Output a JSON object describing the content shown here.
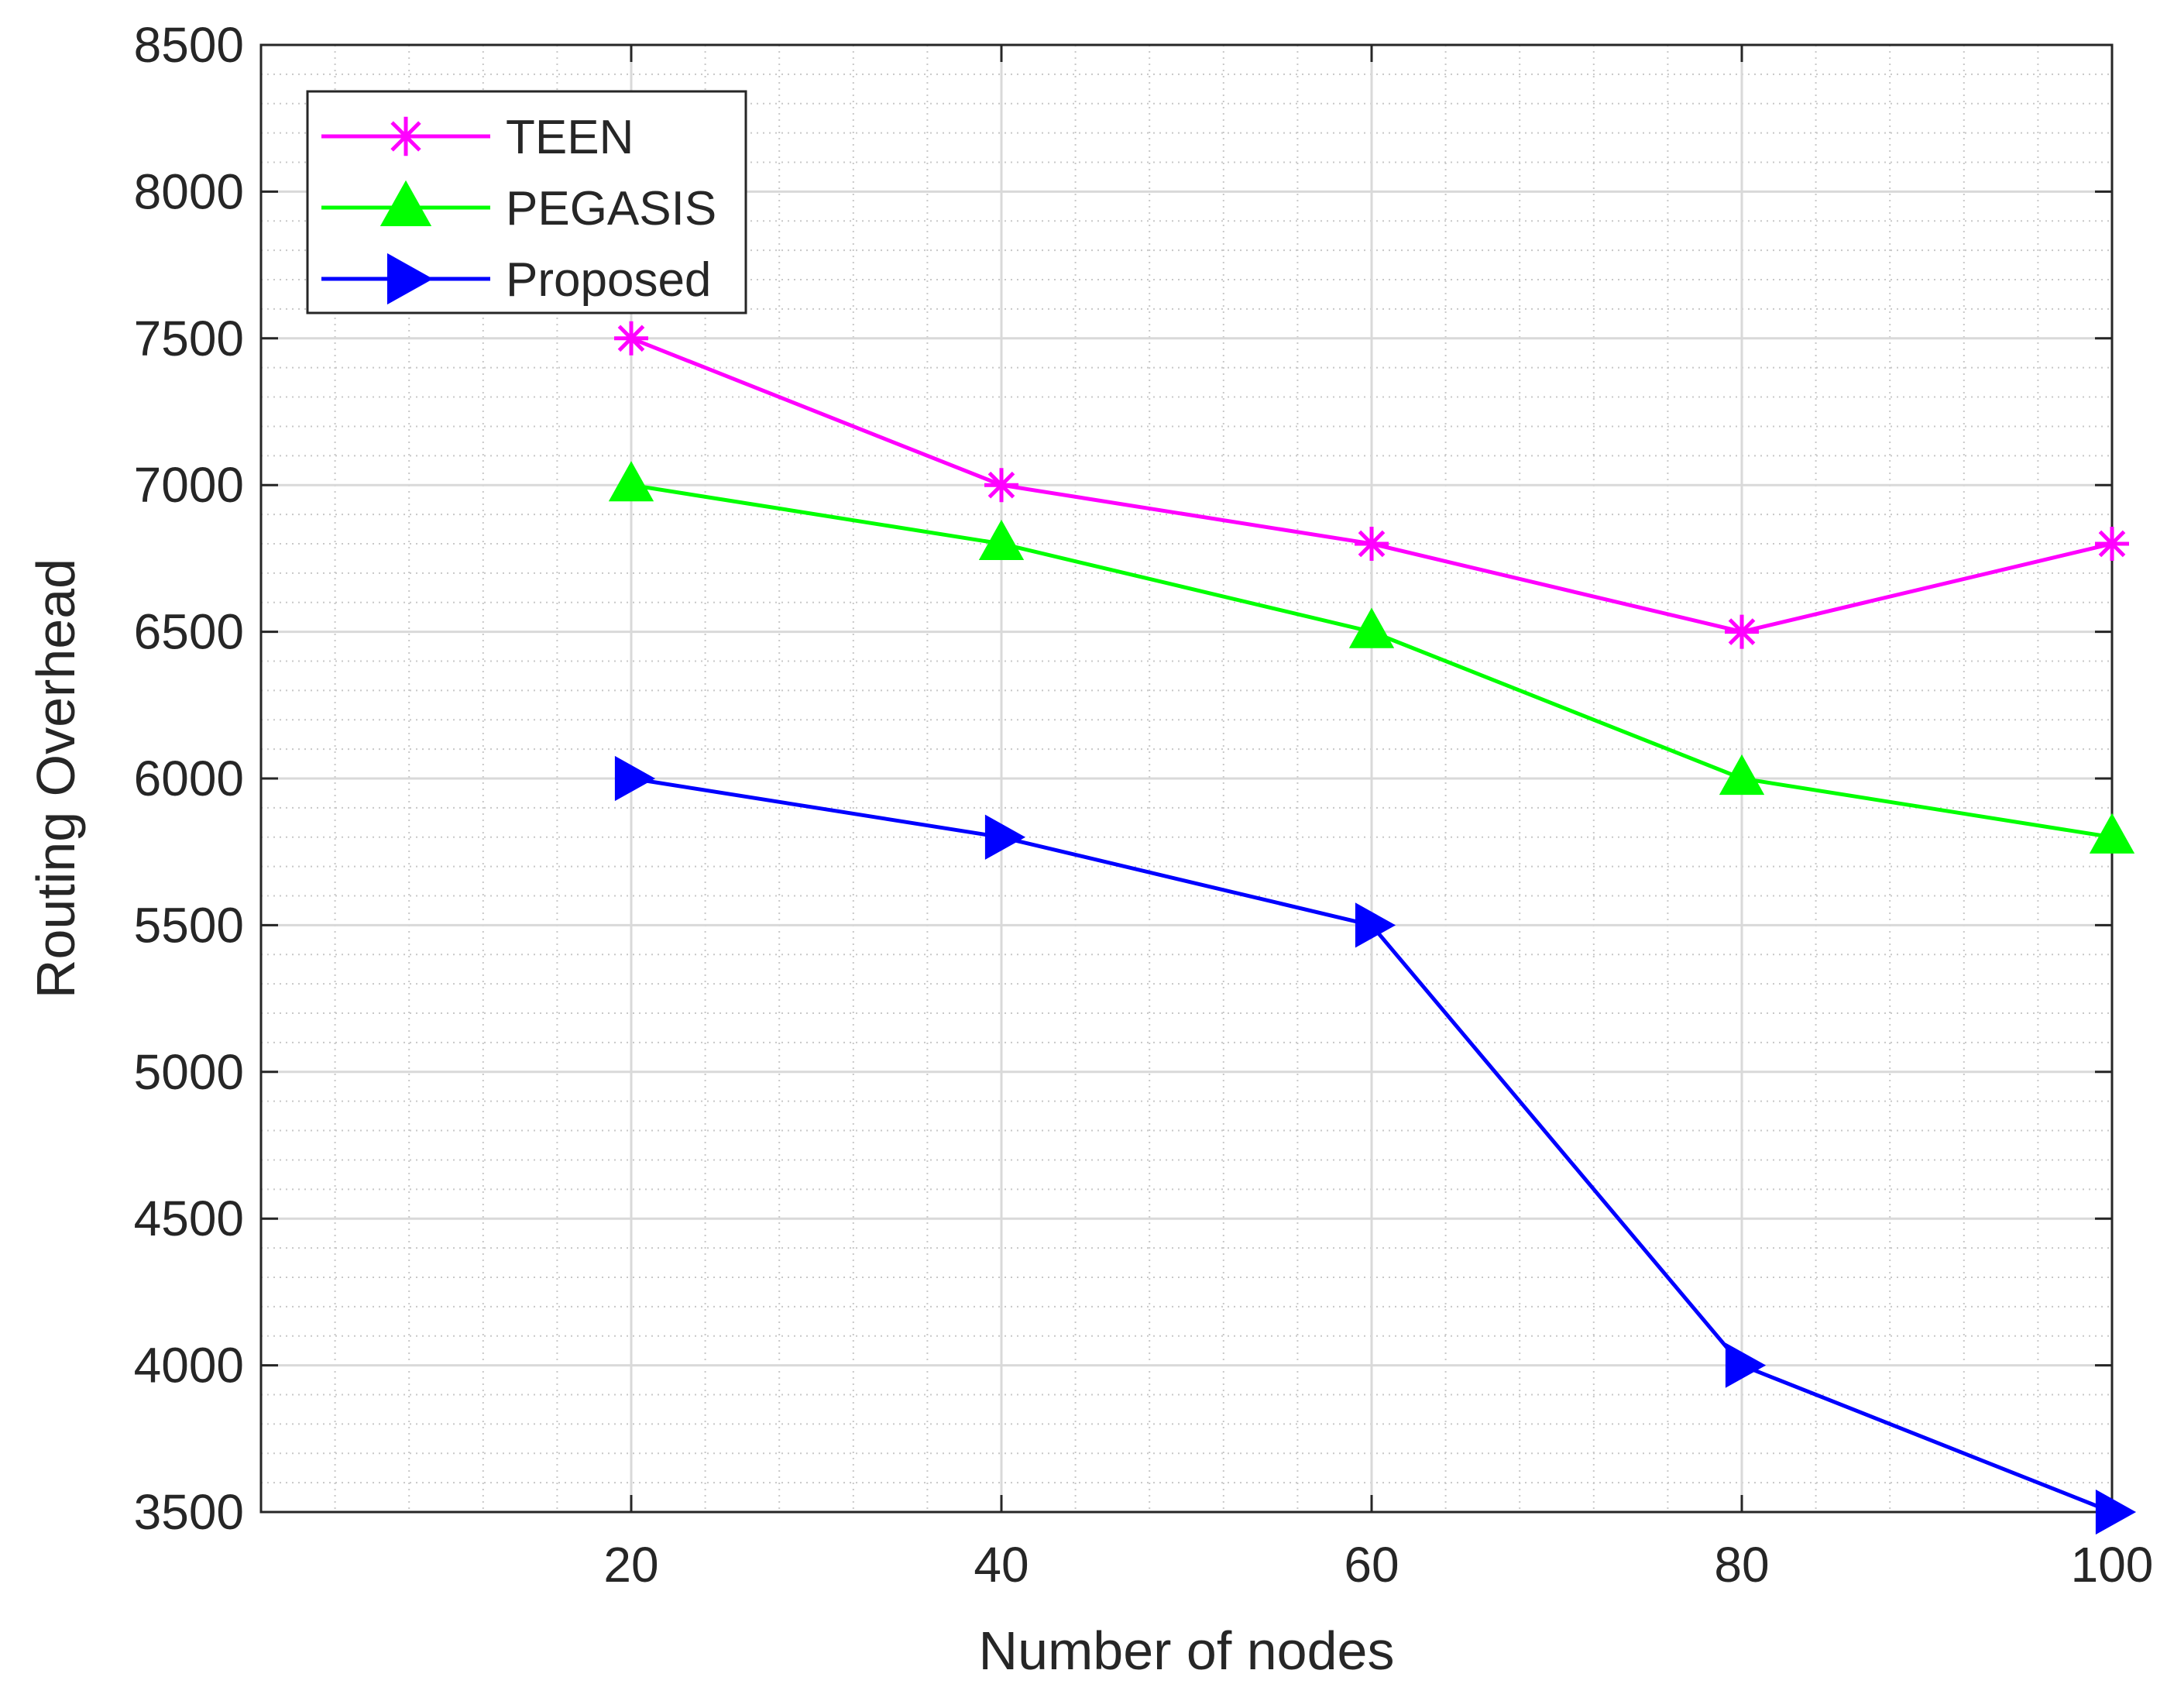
{
  "chart_data": {
    "type": "line",
    "title": "",
    "xlabel": "Number of nodes",
    "ylabel": "Routing Overhead",
    "x": [
      20,
      40,
      60,
      80,
      100
    ],
    "xlim": [
      0,
      100
    ],
    "ylim": [
      3500,
      8500
    ],
    "x_ticks": [
      "20",
      "40",
      "60",
      "80",
      "100"
    ],
    "y_ticks": [
      "3500",
      "4000",
      "4500",
      "5000",
      "5500",
      "6000",
      "6500",
      "7000",
      "7500",
      "8000",
      "8500"
    ],
    "grid": true,
    "minor_grid": true,
    "legend_position": "top-left",
    "series": [
      {
        "name": "TEEN",
        "color": "#ff00ff",
        "marker": "asterisk",
        "values": [
          7500,
          7000,
          6800,
          6500,
          6800
        ]
      },
      {
        "name": "PEGASIS",
        "color": "#00ff00",
        "marker": "triangle-up",
        "values": [
          7000,
          6800,
          6500,
          6000,
          5800
        ]
      },
      {
        "name": "Proposed",
        "color": "#0000ff",
        "marker": "triangle-right",
        "values": [
          6000,
          5800,
          5500,
          4000,
          3500
        ]
      }
    ]
  }
}
